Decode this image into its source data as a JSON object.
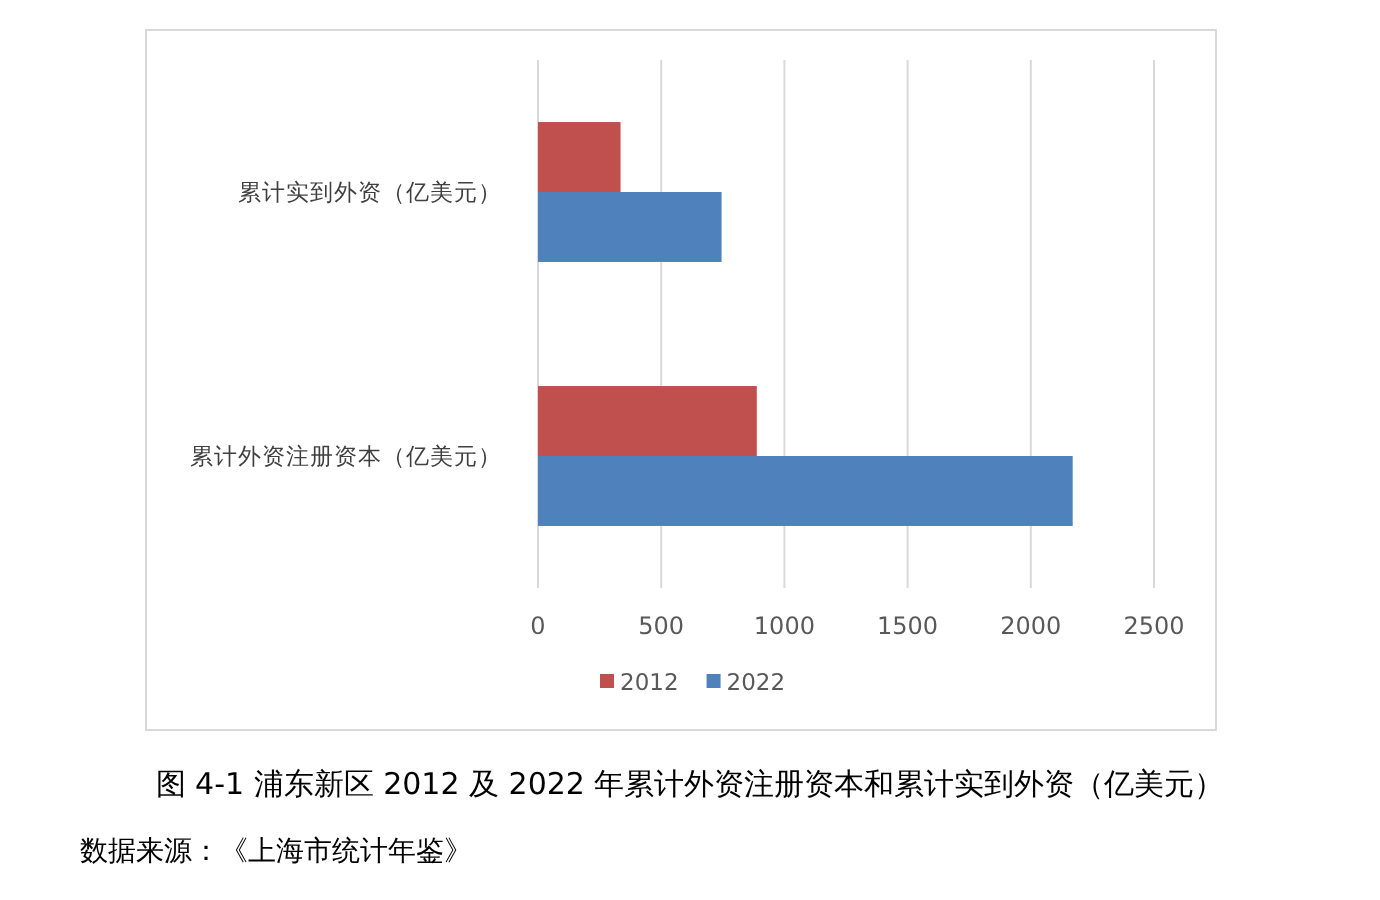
{
  "chart_data": {
    "type": "bar",
    "orientation": "horizontal",
    "title": "图 4-1 浦东新区 2012 及 2022 年累计外资注册资本和累计实到外资（亿美元）",
    "annotations": [
      "数据来源：《上海市统计年鉴》"
    ],
    "categories": [
      "累计实到外资（亿美元）",
      "累计外资注册资本（亿美元）"
    ],
    "series": [
      {
        "name": "2012",
        "color": "#c0504d",
        "values": [
          335,
          888
        ]
      },
      {
        "name": "2022",
        "color": "#4f81bd",
        "values": [
          745,
          2170
        ]
      }
    ],
    "xlim": [
      0,
      2500
    ],
    "xticks": [
      0,
      500,
      1000,
      1500,
      2000,
      2500
    ],
    "grid": "x",
    "legend": "bottom"
  }
}
